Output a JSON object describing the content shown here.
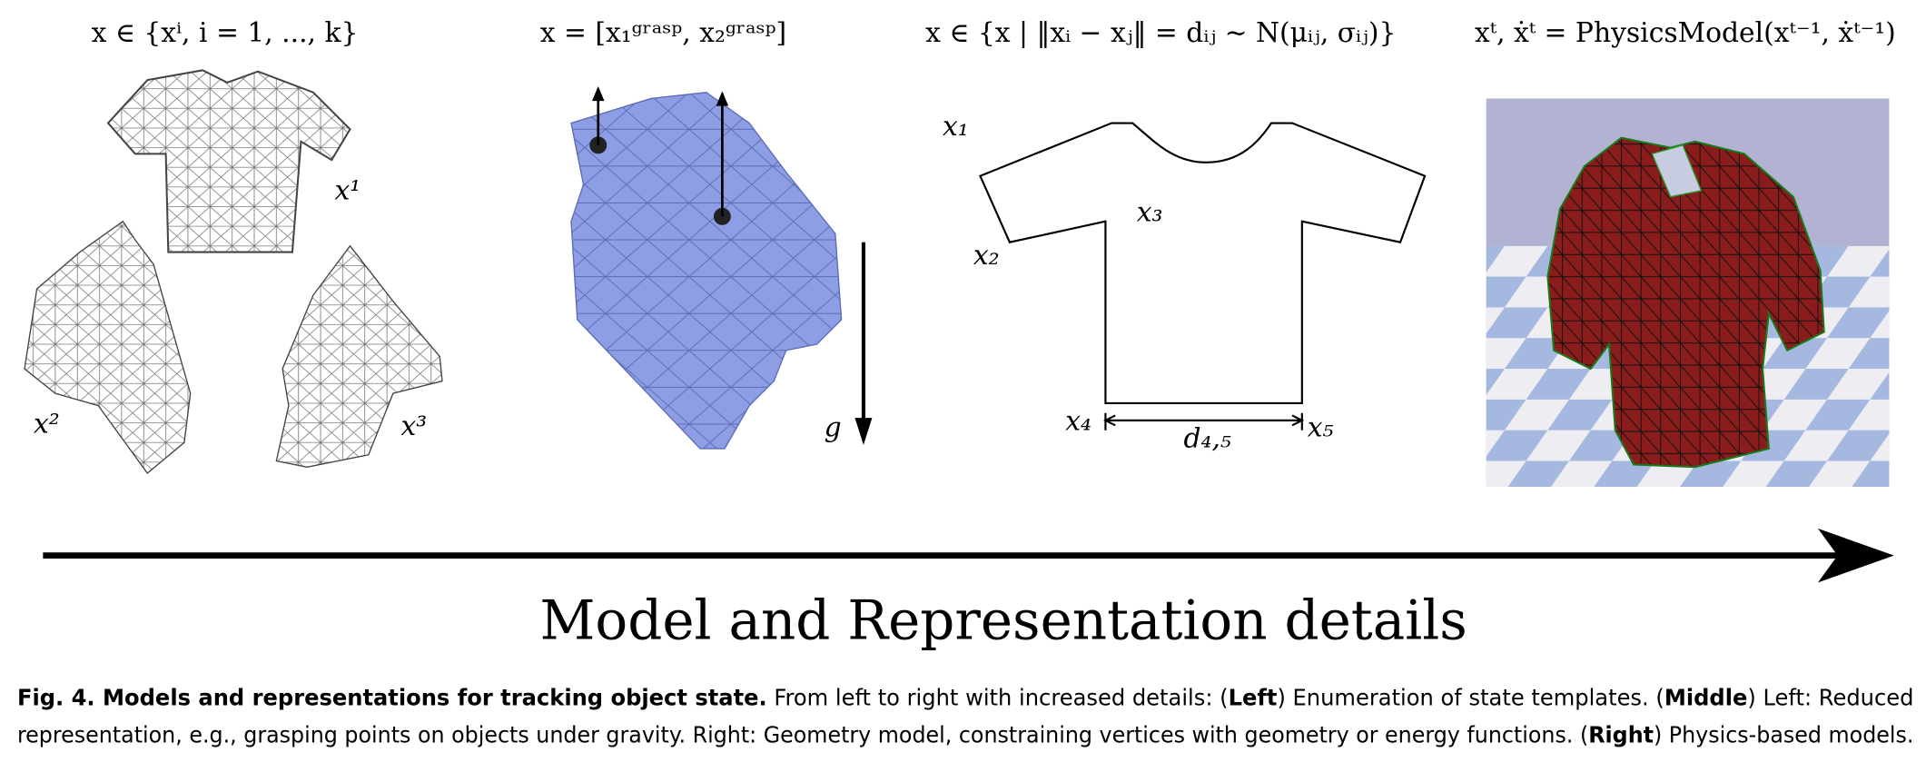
{
  "panels": [
    {
      "formula": "x ∈ {xⁱ, i = 1, ..., k}",
      "labels": [
        "x¹",
        "x²",
        "x³"
      ]
    },
    {
      "formula": "x = [x₁ᵍʳᵃˢᵖ, x₂ᵍʳᵃˢᵖ]",
      "labels": [
        "g"
      ]
    },
    {
      "formula": "x ∈ {x | ‖xᵢ − xⱼ‖ = dᵢⱼ ∼ N(μᵢⱼ, σᵢⱼ)}",
      "labels": [
        "x₁",
        "x₂",
        "x₃",
        "x₄",
        "x₅",
        "d₄,₅"
      ]
    },
    {
      "formula": "xᵗ, ẋᵗ = PhysicsModel(xᵗ⁻¹, ẋᵗ⁻¹)",
      "labels": []
    }
  ],
  "axis_label": "Model and Representation details",
  "caption": {
    "lines": [
      [
        {
          "text": "Fig. 4. Models and representations for tracking object state.",
          "bold": true
        },
        {
          "text": " From left to right with increased details: (",
          "bold": false
        },
        {
          "text": "Left",
          "bold": true
        },
        {
          "text": ") Enumeration of state templates. (",
          "bold": false
        },
        {
          "text": "Middle",
          "bold": true
        },
        {
          "text": ") Left: Reduced",
          "bold": false
        }
      ],
      [
        {
          "text": "representation, e.g., grasping points on objects under gravity. Right: Geometry model, constraining vertices with geometry or energy functions. (",
          "bold": false
        },
        {
          "text": "Right",
          "bold": true
        },
        {
          "text": ") Physics-based models.",
          "bold": false
        }
      ]
    ]
  }
}
